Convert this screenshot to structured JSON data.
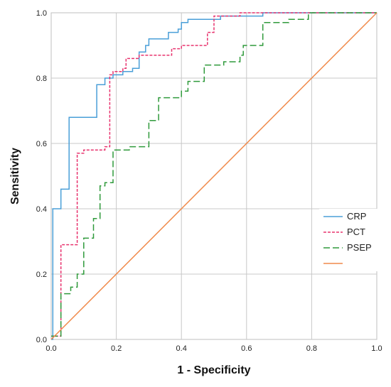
{
  "chart_data": {
    "type": "line",
    "xlabel": "1 - Specificity",
    "ylabel": "Sensitivity",
    "xlim": [
      0,
      1
    ],
    "ylim": [
      0,
      1
    ],
    "xticks": [
      "0.0",
      "0.2",
      "0.4",
      "0.6",
      "0.8",
      "1.0"
    ],
    "yticks": [
      "0.0",
      "0.2",
      "0.4",
      "0.6",
      "0.8",
      "1.0"
    ],
    "grid": true,
    "legend_position": "right",
    "series": [
      {
        "name": "CRP",
        "color": "#4a9fd8",
        "style": "solid",
        "x": [
          0,
          0.005,
          0.005,
          0.03,
          0.03,
          0.055,
          0.055,
          0.14,
          0.14,
          0.165,
          0.165,
          0.19,
          0.19,
          0.22,
          0.22,
          0.25,
          0.25,
          0.27,
          0.27,
          0.29,
          0.29,
          0.3,
          0.3,
          0.36,
          0.36,
          0.39,
          0.39,
          0.4,
          0.4,
          0.42,
          0.42,
          0.52,
          0.52,
          0.56,
          0.56,
          0.65,
          0.65,
          0.7,
          0.7,
          1
        ],
        "y": [
          0,
          0,
          0.4,
          0.4,
          0.46,
          0.46,
          0.68,
          0.68,
          0.78,
          0.78,
          0.8,
          0.8,
          0.81,
          0.81,
          0.82,
          0.82,
          0.83,
          0.83,
          0.88,
          0.88,
          0.9,
          0.9,
          0.92,
          0.92,
          0.94,
          0.94,
          0.95,
          0.95,
          0.97,
          0.97,
          0.98,
          0.98,
          0.99,
          0.99,
          0.99,
          0.99,
          1.0,
          1.0,
          1.0,
          1.0
        ]
      },
      {
        "name": "PCT",
        "color": "#e8336e",
        "style": "short-dash",
        "x": [
          0,
          0.03,
          0.03,
          0.08,
          0.08,
          0.1,
          0.1,
          0.165,
          0.165,
          0.18,
          0.18,
          0.19,
          0.19,
          0.22,
          0.22,
          0.23,
          0.23,
          0.27,
          0.27,
          0.34,
          0.34,
          0.37,
          0.37,
          0.4,
          0.4,
          0.48,
          0.48,
          0.5,
          0.5,
          0.52,
          0.52,
          0.58,
          0.58,
          0.67,
          0.67,
          1
        ],
        "y": [
          0.01,
          0.01,
          0.29,
          0.29,
          0.57,
          0.57,
          0.58,
          0.58,
          0.59,
          0.59,
          0.81,
          0.81,
          0.82,
          0.82,
          0.83,
          0.83,
          0.86,
          0.86,
          0.87,
          0.87,
          0.87,
          0.87,
          0.89,
          0.89,
          0.9,
          0.9,
          0.94,
          0.94,
          0.99,
          0.99,
          0.99,
          0.99,
          1.0,
          1.0,
          1.0,
          1.0
        ]
      },
      {
        "name": "PSEP",
        "color": "#2f9a3b",
        "style": "long-dash",
        "x": [
          0,
          0.03,
          0.03,
          0.06,
          0.06,
          0.08,
          0.08,
          0.1,
          0.1,
          0.13,
          0.13,
          0.15,
          0.15,
          0.165,
          0.165,
          0.19,
          0.19,
          0.24,
          0.24,
          0.27,
          0.27,
          0.3,
          0.3,
          0.33,
          0.33,
          0.4,
          0.4,
          0.42,
          0.42,
          0.47,
          0.47,
          0.53,
          0.53,
          0.58,
          0.58,
          0.59,
          0.59,
          0.62,
          0.62,
          0.65,
          0.65,
          0.73,
          0.73,
          0.79,
          0.79,
          0.83,
          0.83,
          1
        ],
        "y": [
          0.01,
          0.01,
          0.14,
          0.14,
          0.16,
          0.16,
          0.2,
          0.2,
          0.31,
          0.31,
          0.37,
          0.37,
          0.47,
          0.47,
          0.48,
          0.48,
          0.58,
          0.58,
          0.59,
          0.59,
          0.59,
          0.59,
          0.67,
          0.67,
          0.74,
          0.74,
          0.76,
          0.76,
          0.79,
          0.79,
          0.84,
          0.84,
          0.85,
          0.85,
          0.87,
          0.87,
          0.9,
          0.9,
          0.9,
          0.9,
          0.97,
          0.97,
          0.98,
          0.98,
          1.0,
          1.0,
          1.0,
          1.0
        ]
      },
      {
        "name": "",
        "color": "#f08a4b",
        "style": "solid",
        "x": [
          0,
          1
        ],
        "y": [
          0,
          1
        ]
      }
    ]
  }
}
